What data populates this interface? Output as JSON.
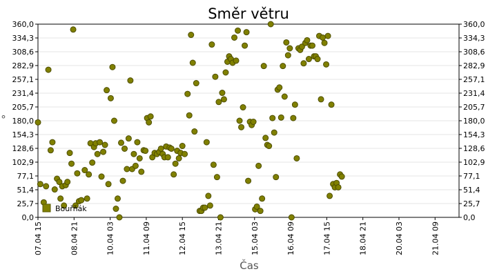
{
  "chart_data": {
    "type": "scatter",
    "title": "Směr větru",
    "xlabel": "Čas",
    "ylabel": "°",
    "ylim": [
      0,
      360
    ],
    "xlim": [
      0,
      14.58
    ],
    "y_ticks": [
      "0,0",
      "25,7",
      "51,4",
      "77,1",
      "102,9",
      "128,6",
      "154,3",
      "180,0",
      "205,7",
      "231,4",
      "257,1",
      "282,9",
      "308,6",
      "334,3",
      "360,0"
    ],
    "x_ticks": [
      {
        "x": 0.0,
        "label": "07.04 15"
      },
      {
        "x": 1.25,
        "label": "08.04 21"
      },
      {
        "x": 2.5,
        "label": "10.04 03"
      },
      {
        "x": 3.75,
        "label": "11.04 09"
      },
      {
        "x": 5.0,
        "label": "12.04 15"
      },
      {
        "x": 6.25,
        "label": "13.04 21"
      },
      {
        "x": 7.5,
        "label": "15.04 03"
      },
      {
        "x": 8.75,
        "label": "16.04 09"
      },
      {
        "x": 10.0,
        "label": "17.04 15"
      },
      {
        "x": 11.25,
        "label": "18.04 21"
      },
      {
        "x": 12.5,
        "label": "20.04 03"
      },
      {
        "x": 13.75,
        "label": "21.04 09"
      }
    ],
    "grid": true,
    "legend_position": "bottom-left",
    "series": [
      {
        "name": "Bouřňák",
        "color": "#808000",
        "points": [
          [
            0.0,
            177
          ],
          [
            0.08,
            62
          ],
          [
            0.2,
            28
          ],
          [
            0.28,
            58
          ],
          [
            0.36,
            275
          ],
          [
            0.44,
            125
          ],
          [
            0.5,
            140
          ],
          [
            0.58,
            52
          ],
          [
            0.66,
            72
          ],
          [
            0.74,
            66
          ],
          [
            0.78,
            35
          ],
          [
            0.84,
            58
          ],
          [
            0.9,
            22
          ],
          [
            0.96,
            60
          ],
          [
            1.02,
            66
          ],
          [
            1.1,
            120
          ],
          [
            1.16,
            100
          ],
          [
            1.22,
            350
          ],
          [
            1.3,
            22
          ],
          [
            1.36,
            82
          ],
          [
            1.42,
            30
          ],
          [
            1.5,
            32
          ],
          [
            1.62,
            88
          ],
          [
            1.7,
            35
          ],
          [
            1.76,
            80
          ],
          [
            1.82,
            138
          ],
          [
            1.88,
            102
          ],
          [
            1.94,
            131
          ],
          [
            2.0,
            138
          ],
          [
            2.06,
            118
          ],
          [
            2.14,
            140
          ],
          [
            2.2,
            76
          ],
          [
            2.26,
            122
          ],
          [
            2.32,
            135
          ],
          [
            2.38,
            237
          ],
          [
            2.44,
            62
          ],
          [
            2.52,
            222
          ],
          [
            2.58,
            280
          ],
          [
            2.64,
            180
          ],
          [
            2.7,
            16
          ],
          [
            2.76,
            35
          ],
          [
            2.82,
            0
          ],
          [
            2.88,
            139
          ],
          [
            2.94,
            68
          ],
          [
            3.0,
            128
          ],
          [
            3.08,
            90
          ],
          [
            3.14,
            147
          ],
          [
            3.2,
            255
          ],
          [
            3.26,
            90
          ],
          [
            3.32,
            118
          ],
          [
            3.38,
            96
          ],
          [
            3.44,
            140
          ],
          [
            3.52,
            110
          ],
          [
            3.58,
            85
          ],
          [
            3.66,
            125
          ],
          [
            3.72,
            124
          ],
          [
            3.78,
            185
          ],
          [
            3.84,
            177
          ],
          [
            3.9,
            188
          ],
          [
            3.96,
            112
          ],
          [
            4.04,
            120
          ],
          [
            4.12,
            118
          ],
          [
            4.2,
            122
          ],
          [
            4.26,
            128
          ],
          [
            4.32,
            118
          ],
          [
            4.38,
            112
          ],
          [
            4.44,
            132
          ],
          [
            4.5,
            112
          ],
          [
            4.56,
            130
          ],
          [
            4.62,
            128
          ],
          [
            4.7,
            80
          ],
          [
            4.76,
            100
          ],
          [
            4.82,
            124
          ],
          [
            4.88,
            110
          ],
          [
            4.94,
            120
          ],
          [
            5.0,
            133
          ],
          [
            5.08,
            118
          ],
          [
            5.18,
            230
          ],
          [
            5.24,
            190
          ],
          [
            5.3,
            340
          ],
          [
            5.36,
            288
          ],
          [
            5.42,
            160
          ],
          [
            5.48,
            250
          ],
          [
            5.6,
            12
          ],
          [
            5.66,
            12
          ],
          [
            5.72,
            18
          ],
          [
            5.78,
            18
          ],
          [
            5.84,
            140
          ],
          [
            5.9,
            40
          ],
          [
            5.96,
            22
          ],
          [
            6.02,
            322
          ],
          [
            6.08,
            98
          ],
          [
            6.14,
            262
          ],
          [
            6.2,
            75
          ],
          [
            6.26,
            215
          ],
          [
            6.32,
            0
          ],
          [
            6.38,
            232
          ],
          [
            6.44,
            220
          ],
          [
            6.5,
            270
          ],
          [
            6.56,
            290
          ],
          [
            6.62,
            300
          ],
          [
            6.68,
            295
          ],
          [
            6.74,
            288
          ],
          [
            6.8,
            335
          ],
          [
            6.86,
            292
          ],
          [
            6.92,
            348
          ],
          [
            6.98,
            180
          ],
          [
            7.04,
            168
          ],
          [
            7.1,
            205
          ],
          [
            7.16,
            320
          ],
          [
            7.22,
            345
          ],
          [
            7.28,
            68
          ],
          [
            7.34,
            178
          ],
          [
            7.4,
            172
          ],
          [
            7.46,
            178
          ],
          [
            7.52,
            15
          ],
          [
            7.58,
            20
          ],
          [
            7.64,
            96
          ],
          [
            7.7,
            12
          ],
          [
            7.76,
            35
          ],
          [
            7.82,
            282
          ],
          [
            7.88,
            148
          ],
          [
            7.94,
            135
          ],
          [
            8.0,
            133
          ],
          [
            8.06,
            360
          ],
          [
            8.12,
            185
          ],
          [
            8.18,
            158
          ],
          [
            8.24,
            75
          ],
          [
            8.3,
            238
          ],
          [
            8.36,
            242
          ],
          [
            8.42,
            186
          ],
          [
            8.48,
            282
          ],
          [
            8.54,
            225
          ],
          [
            8.6,
            326
          ],
          [
            8.66,
            302
          ],
          [
            8.72,
            315
          ],
          [
            8.78,
            0
          ],
          [
            8.84,
            185
          ],
          [
            8.9,
            210
          ],
          [
            8.96,
            110
          ],
          [
            9.02,
            315
          ],
          [
            9.08,
            312
          ],
          [
            9.14,
            318
          ],
          [
            9.2,
            287
          ],
          [
            9.26,
            325
          ],
          [
            9.32,
            330
          ],
          [
            9.38,
            295
          ],
          [
            9.44,
            320
          ],
          [
            9.5,
            320
          ],
          [
            9.56,
            300
          ],
          [
            9.62,
            300
          ],
          [
            9.68,
            295
          ],
          [
            9.74,
            338
          ],
          [
            9.8,
            220
          ],
          [
            9.86,
            335
          ],
          [
            9.92,
            325
          ],
          [
            9.98,
            285
          ],
          [
            10.04,
            338
          ],
          [
            10.1,
            40
          ],
          [
            10.16,
            210
          ],
          [
            10.22,
            62
          ],
          [
            10.28,
            56
          ],
          [
            10.34,
            64
          ],
          [
            10.4,
            56
          ],
          [
            10.46,
            80
          ],
          [
            10.52,
            76
          ]
        ]
      }
    ]
  }
}
